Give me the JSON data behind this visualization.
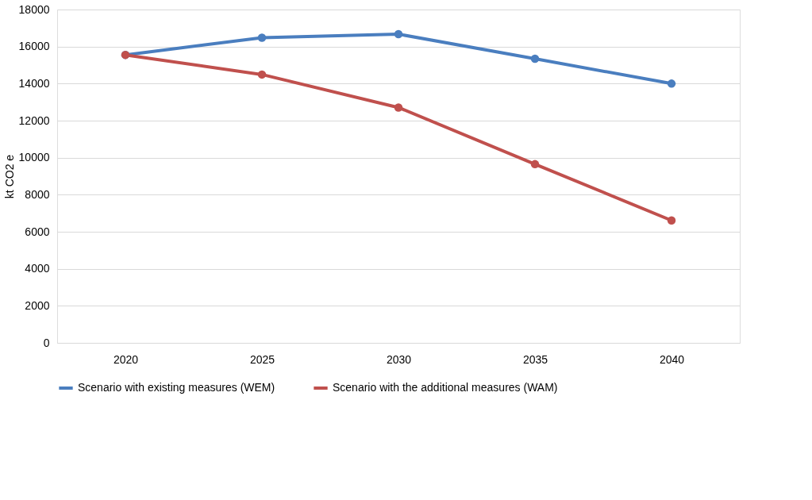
{
  "chart_data": {
    "type": "line",
    "ylabel": "kt CO2 e",
    "categories": [
      "2020",
      "2025",
      "2030",
      "2035",
      "2040"
    ],
    "series": [
      {
        "name": "Scenario with existing measures (WEM)",
        "color": "#4a7ebf",
        "values": [
          15550,
          16480,
          16670,
          15340,
          14000
        ]
      },
      {
        "name": "Scenario with the additional measures (WAM)",
        "color": "#c0504d",
        "values": [
          15550,
          14490,
          12710,
          9650,
          6610
        ]
      }
    ],
    "ylim": [
      0,
      18000
    ],
    "yticks": [
      0,
      2000,
      4000,
      6000,
      8000,
      10000,
      12000,
      14000,
      16000,
      18000
    ],
    "grid": "y",
    "legend": "bottom",
    "marker": "circle",
    "line_style": "solid"
  }
}
